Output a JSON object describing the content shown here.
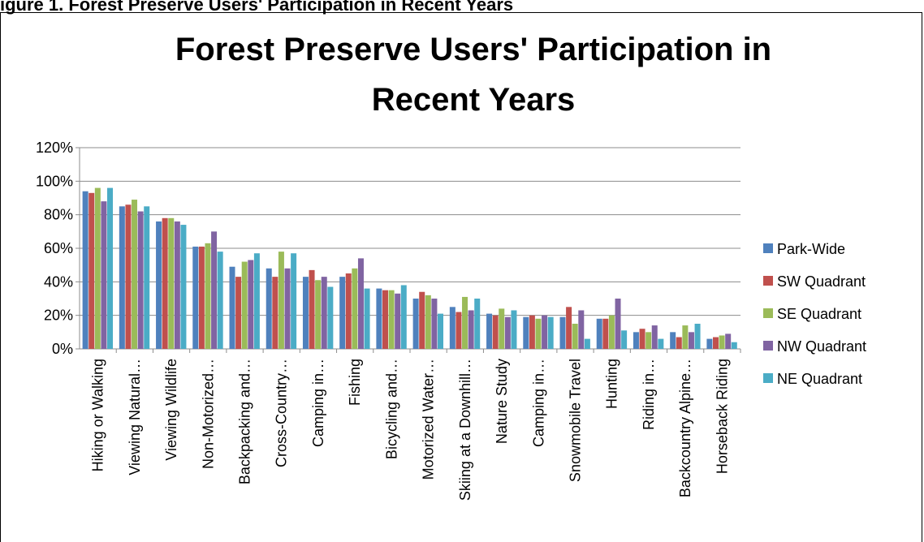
{
  "caption": "igure 1. Forest Preserve Users' Participation in Recent Years",
  "chart_data": {
    "type": "bar",
    "title_lines": [
      "Forest Preserve Users' Participation in",
      "Recent Years"
    ],
    "xlabel": "",
    "ylabel": "",
    "ylim": [
      0,
      120
    ],
    "y_ticks": [
      "0%",
      "20%",
      "40%",
      "60%",
      "80%",
      "100%",
      "120%"
    ],
    "grid": true,
    "legend_position": "right",
    "categories": [
      "Hiking or Walking",
      "Viewing Natural…",
      "Viewing Wildlife",
      "Non-Motorized…",
      "Backpacking and…",
      "Cross-Country…",
      "Camping in…",
      "Fishing",
      "Bicycling and…",
      "Motorized Water…",
      "Skiing at a Downhill…",
      "Nature Study",
      "Camping in…",
      "Snowmobile Travel",
      "Hunting",
      "Riding in…",
      "Backcountry Alpine…",
      "Horseback Riding"
    ],
    "series": [
      {
        "name": "Park-Wide",
        "color": "#4f81bd",
        "values": [
          94,
          85,
          76,
          61,
          49,
          48,
          43,
          43,
          36,
          30,
          25,
          21,
          19,
          19,
          18,
          10,
          10,
          6
        ]
      },
      {
        "name": "SW Quadrant",
        "color": "#c0504d",
        "values": [
          93,
          86,
          78,
          61,
          43,
          43,
          47,
          45,
          35,
          34,
          22,
          20,
          20,
          25,
          18,
          12,
          7,
          7
        ]
      },
      {
        "name": "SE Quadrant",
        "color": "#9bbb59",
        "values": [
          96,
          89,
          78,
          63,
          52,
          58,
          41,
          48,
          35,
          32,
          31,
          24,
          18,
          15,
          20,
          10,
          14,
          8
        ]
      },
      {
        "name": "NW Quadrant",
        "color": "#8064a2",
        "values": [
          88,
          82,
          76,
          70,
          53,
          48,
          43,
          54,
          33,
          30,
          23,
          19,
          20,
          23,
          30,
          14,
          10,
          9
        ]
      },
      {
        "name": "NE Quadrant",
        "color": "#4bacc6",
        "values": [
          96,
          85,
          74,
          58,
          57,
          57,
          37,
          36,
          38,
          21,
          30,
          23,
          19,
          6,
          11,
          6,
          15,
          4
        ]
      }
    ]
  }
}
